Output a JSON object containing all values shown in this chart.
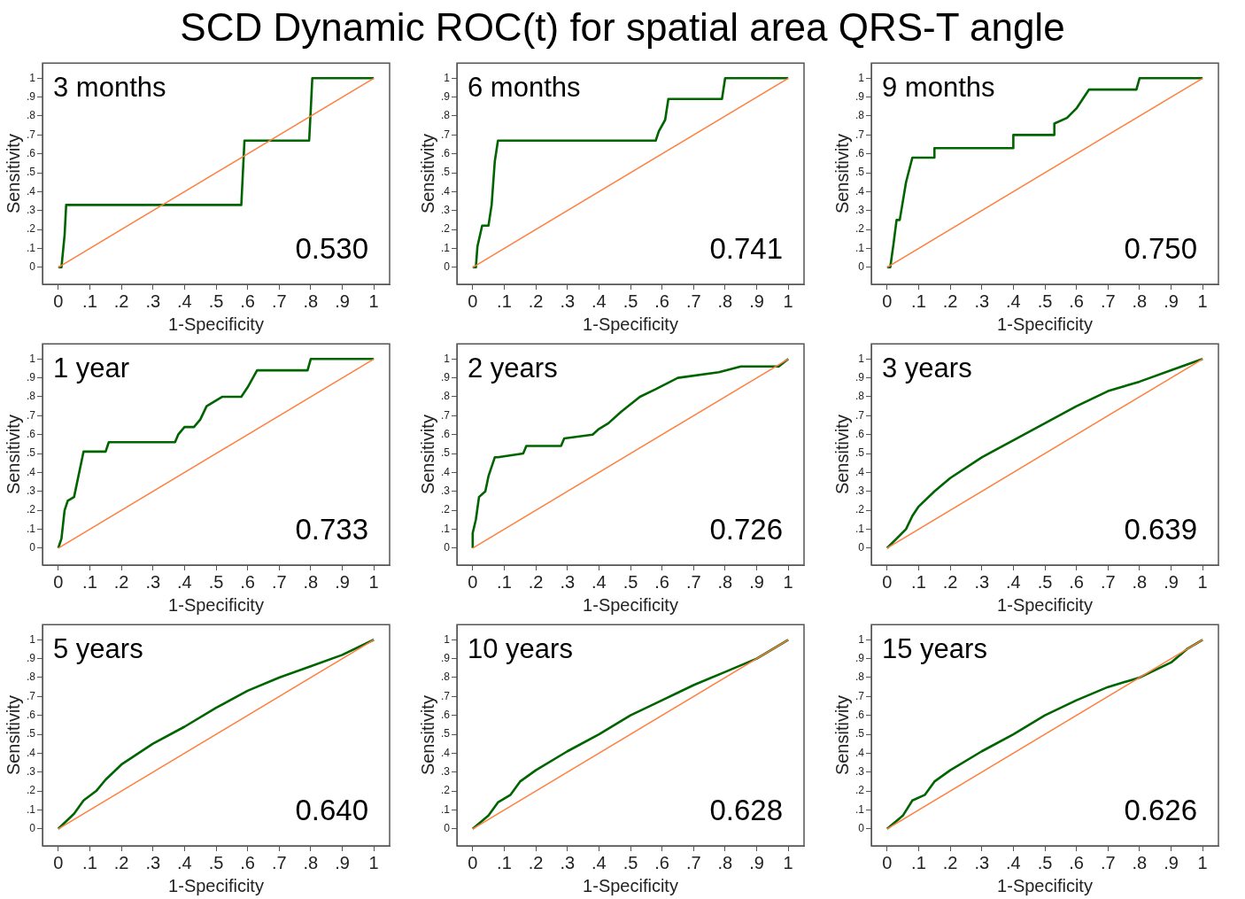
{
  "chart_data": [
    {
      "type": "line",
      "title": "SCD Dynamic ROC(t) for spatial area QRS-T angle",
      "xlabel": "1-Specificity",
      "ylabel": "Sensitivity",
      "annotations": [
        "3 months",
        "0.530"
      ],
      "xlim": [
        -0.05,
        1.05
      ],
      "ylim": [
        -0.09,
        1.08
      ],
      "xticks": [
        {
          "value": 0,
          "label": "0"
        },
        {
          "value": 0.1,
          "label": ".1"
        },
        {
          "value": 0.2,
          "label": ".2"
        },
        {
          "value": 0.3,
          "label": ".3"
        },
        {
          "value": 0.4,
          "label": ".4"
        },
        {
          "value": 0.5,
          "label": ".5"
        },
        {
          "value": 0.6,
          "label": ".6"
        },
        {
          "value": 0.7,
          "label": ".7"
        },
        {
          "value": 0.8,
          "label": ".8"
        },
        {
          "value": 0.9,
          "label": ".9"
        },
        {
          "value": 1,
          "label": "1"
        }
      ],
      "yticks": [
        {
          "value": 0,
          "label": "0"
        },
        {
          "value": 0.1,
          "label": ".1"
        },
        {
          "value": 0.2,
          "label": ".2"
        },
        {
          "value": 0.3,
          "label": ".3"
        },
        {
          "value": 0.4,
          "label": ".4"
        },
        {
          "value": 0.5,
          "label": ".5"
        },
        {
          "value": 0.6,
          "label": ".6"
        },
        {
          "value": 0.7,
          "label": ".7"
        },
        {
          "value": 0.8,
          "label": ".8"
        },
        {
          "value": 0.9,
          "label": ".9"
        },
        {
          "value": 1,
          "label": "1"
        }
      ],
      "grid": false,
      "legend": false,
      "marker": "none",
      "series": [
        {
          "color": "#006400",
          "x": [
            0,
            0.01,
            0.02,
            0.025,
            0.58,
            0.585,
            0.59,
            0.795,
            0.8,
            0.805,
            1
          ],
          "values": [
            0,
            0,
            0.17,
            0.33,
            0.33,
            0.5,
            0.67,
            0.67,
            0.83,
            1,
            1
          ]
        },
        {
          "color": "#ff7f3f",
          "x": [
            0,
            1
          ],
          "values": [
            0,
            1
          ]
        }
      ]
    },
    {
      "type": "line",
      "xlabel": "1-Specificity",
      "ylabel": "Sensitivity",
      "annotations": [
        "6 months",
        "0.741"
      ],
      "xlim": [
        -0.05,
        1.05
      ],
      "ylim": [
        -0.09,
        1.08
      ],
      "xticks": [
        {
          "value": 0,
          "label": "0"
        },
        {
          "value": 0.1,
          "label": ".1"
        },
        {
          "value": 0.2,
          "label": ".2"
        },
        {
          "value": 0.3,
          "label": ".3"
        },
        {
          "value": 0.4,
          "label": ".4"
        },
        {
          "value": 0.5,
          "label": ".5"
        },
        {
          "value": 0.6,
          "label": ".6"
        },
        {
          "value": 0.7,
          "label": ".7"
        },
        {
          "value": 0.8,
          "label": ".8"
        },
        {
          "value": 0.9,
          "label": ".9"
        },
        {
          "value": 1,
          "label": "1"
        }
      ],
      "yticks": [
        {
          "value": 0,
          "label": "0"
        },
        {
          "value": 0.1,
          "label": ".1"
        },
        {
          "value": 0.2,
          "label": ".2"
        },
        {
          "value": 0.3,
          "label": ".3"
        },
        {
          "value": 0.4,
          "label": ".4"
        },
        {
          "value": 0.5,
          "label": ".5"
        },
        {
          "value": 0.6,
          "label": ".6"
        },
        {
          "value": 0.7,
          "label": ".7"
        },
        {
          "value": 0.8,
          "label": ".8"
        },
        {
          "value": 0.9,
          "label": ".9"
        },
        {
          "value": 1,
          "label": "1"
        }
      ],
      "grid": false,
      "legend": false,
      "marker": "none",
      "series": [
        {
          "color": "#006400",
          "x": [
            0,
            0.01,
            0.015,
            0.03,
            0.05,
            0.06,
            0.07,
            0.08,
            0.58,
            0.59,
            0.61,
            0.62,
            0.79,
            0.8,
            1
          ],
          "values": [
            0,
            0,
            0.11,
            0.22,
            0.22,
            0.33,
            0.56,
            0.67,
            0.67,
            0.72,
            0.78,
            0.89,
            0.89,
            1,
            1
          ]
        },
        {
          "color": "#ff7f3f",
          "x": [
            0,
            1
          ],
          "values": [
            0,
            1
          ]
        }
      ]
    },
    {
      "type": "line",
      "xlabel": "1-Specificity",
      "ylabel": "Sensitivity",
      "annotations": [
        "9 months",
        "0.750"
      ],
      "xlim": [
        -0.05,
        1.05
      ],
      "ylim": [
        -0.09,
        1.08
      ],
      "xticks": [
        {
          "value": 0,
          "label": "0"
        },
        {
          "value": 0.1,
          "label": ".1"
        },
        {
          "value": 0.2,
          "label": ".2"
        },
        {
          "value": 0.3,
          "label": ".3"
        },
        {
          "value": 0.4,
          "label": ".4"
        },
        {
          "value": 0.5,
          "label": ".5"
        },
        {
          "value": 0.6,
          "label": ".6"
        },
        {
          "value": 0.7,
          "label": ".7"
        },
        {
          "value": 0.8,
          "label": ".8"
        },
        {
          "value": 0.9,
          "label": ".9"
        },
        {
          "value": 1,
          "label": "1"
        }
      ],
      "yticks": [
        {
          "value": 0,
          "label": "0"
        },
        {
          "value": 0.1,
          "label": ".1"
        },
        {
          "value": 0.2,
          "label": ".2"
        },
        {
          "value": 0.3,
          "label": ".3"
        },
        {
          "value": 0.4,
          "label": ".4"
        },
        {
          "value": 0.5,
          "label": ".5"
        },
        {
          "value": 0.6,
          "label": ".6"
        },
        {
          "value": 0.7,
          "label": ".7"
        },
        {
          "value": 0.8,
          "label": ".8"
        },
        {
          "value": 0.9,
          "label": ".9"
        },
        {
          "value": 1,
          "label": "1"
        }
      ],
      "grid": false,
      "legend": false,
      "marker": "none",
      "series": [
        {
          "color": "#006400",
          "x": [
            0,
            0.01,
            0.02,
            0.03,
            0.04,
            0.06,
            0.08,
            0.15,
            0.15,
            0.4,
            0.4,
            0.53,
            0.53,
            0.57,
            0.6,
            0.64,
            0.79,
            0.8,
            1
          ],
          "values": [
            0,
            0,
            0.12,
            0.25,
            0.25,
            0.45,
            0.58,
            0.58,
            0.63,
            0.63,
            0.7,
            0.7,
            0.76,
            0.79,
            0.84,
            0.94,
            0.94,
            1,
            1
          ]
        },
        {
          "color": "#ff7f3f",
          "x": [
            0,
            1
          ],
          "values": [
            0,
            1
          ]
        }
      ]
    },
    {
      "type": "line",
      "xlabel": "1-Specificity",
      "ylabel": "Sensitivity",
      "annotations": [
        "1 year",
        "0.733"
      ],
      "xlim": [
        -0.05,
        1.05
      ],
      "ylim": [
        -0.09,
        1.08
      ],
      "xticks": [
        {
          "value": 0,
          "label": "0"
        },
        {
          "value": 0.1,
          "label": ".1"
        },
        {
          "value": 0.2,
          "label": ".2"
        },
        {
          "value": 0.3,
          "label": ".3"
        },
        {
          "value": 0.4,
          "label": ".4"
        },
        {
          "value": 0.5,
          "label": ".5"
        },
        {
          "value": 0.6,
          "label": ".6"
        },
        {
          "value": 0.7,
          "label": ".7"
        },
        {
          "value": 0.8,
          "label": ".8"
        },
        {
          "value": 0.9,
          "label": ".9"
        },
        {
          "value": 1,
          "label": "1"
        }
      ],
      "yticks": [
        {
          "value": 0,
          "label": "0"
        },
        {
          "value": 0.1,
          "label": ".1"
        },
        {
          "value": 0.2,
          "label": ".2"
        },
        {
          "value": 0.3,
          "label": ".3"
        },
        {
          "value": 0.4,
          "label": ".4"
        },
        {
          "value": 0.5,
          "label": ".5"
        },
        {
          "value": 0.6,
          "label": ".6"
        },
        {
          "value": 0.7,
          "label": ".7"
        },
        {
          "value": 0.8,
          "label": ".8"
        },
        {
          "value": 0.9,
          "label": ".9"
        },
        {
          "value": 1,
          "label": "1"
        }
      ],
      "grid": false,
      "legend": false,
      "marker": "none",
      "series": [
        {
          "color": "#006400",
          "x": [
            0,
            0.01,
            0.02,
            0.03,
            0.05,
            0.08,
            0.15,
            0.16,
            0.37,
            0.38,
            0.4,
            0.43,
            0.45,
            0.47,
            0.52,
            0.58,
            0.6,
            0.63,
            0.79,
            0.8,
            1
          ],
          "values": [
            0,
            0.05,
            0.2,
            0.25,
            0.27,
            0.51,
            0.51,
            0.56,
            0.56,
            0.6,
            0.64,
            0.64,
            0.68,
            0.75,
            0.8,
            0.8,
            0.85,
            0.94,
            0.94,
            1,
            1
          ]
        },
        {
          "color": "#ff7f3f",
          "x": [
            0,
            1
          ],
          "values": [
            0,
            1
          ]
        }
      ]
    },
    {
      "type": "line",
      "xlabel": "1-Specificity",
      "ylabel": "Sensitivity",
      "annotations": [
        "2 years",
        "0.726"
      ],
      "xlim": [
        -0.05,
        1.05
      ],
      "ylim": [
        -0.09,
        1.08
      ],
      "xticks": [
        {
          "value": 0,
          "label": "0"
        },
        {
          "value": 0.1,
          "label": ".1"
        },
        {
          "value": 0.2,
          "label": ".2"
        },
        {
          "value": 0.3,
          "label": ".3"
        },
        {
          "value": 0.4,
          "label": ".4"
        },
        {
          "value": 0.5,
          "label": ".5"
        },
        {
          "value": 0.6,
          "label": ".6"
        },
        {
          "value": 0.7,
          "label": ".7"
        },
        {
          "value": 0.8,
          "label": ".8"
        },
        {
          "value": 0.9,
          "label": ".9"
        },
        {
          "value": 1,
          "label": "1"
        }
      ],
      "yticks": [
        {
          "value": 0,
          "label": "0"
        },
        {
          "value": 0.1,
          "label": ".1"
        },
        {
          "value": 0.2,
          "label": ".2"
        },
        {
          "value": 0.3,
          "label": ".3"
        },
        {
          "value": 0.4,
          "label": ".4"
        },
        {
          "value": 0.5,
          "label": ".5"
        },
        {
          "value": 0.6,
          "label": ".6"
        },
        {
          "value": 0.7,
          "label": ".7"
        },
        {
          "value": 0.8,
          "label": ".8"
        },
        {
          "value": 0.9,
          "label": ".9"
        },
        {
          "value": 1,
          "label": "1"
        }
      ],
      "grid": false,
      "legend": false,
      "marker": "none",
      "series": [
        {
          "color": "#006400",
          "x": [
            0,
            0,
            0.01,
            0.02,
            0.04,
            0.05,
            0.07,
            0.08,
            0.16,
            0.17,
            0.28,
            0.29,
            0.38,
            0.4,
            0.43,
            0.47,
            0.5,
            0.53,
            0.58,
            0.65,
            0.78,
            0.85,
            0.97,
            1
          ],
          "values": [
            0,
            0.08,
            0.15,
            0.27,
            0.3,
            0.38,
            0.48,
            0.48,
            0.5,
            0.54,
            0.54,
            0.58,
            0.6,
            0.63,
            0.66,
            0.72,
            0.76,
            0.8,
            0.84,
            0.9,
            0.93,
            0.96,
            0.96,
            1
          ]
        },
        {
          "color": "#ff7f3f",
          "x": [
            0,
            1
          ],
          "values": [
            0,
            1
          ]
        }
      ]
    },
    {
      "type": "line",
      "xlabel": "1-Specificity",
      "ylabel": "Sensitivity",
      "annotations": [
        "3 years",
        "0.639"
      ],
      "xlim": [
        -0.05,
        1.05
      ],
      "ylim": [
        -0.09,
        1.08
      ],
      "xticks": [
        {
          "value": 0,
          "label": "0"
        },
        {
          "value": 0.1,
          "label": ".1"
        },
        {
          "value": 0.2,
          "label": ".2"
        },
        {
          "value": 0.3,
          "label": ".3"
        },
        {
          "value": 0.4,
          "label": ".4"
        },
        {
          "value": 0.5,
          "label": ".5"
        },
        {
          "value": 0.6,
          "label": ".6"
        },
        {
          "value": 0.7,
          "label": ".7"
        },
        {
          "value": 0.8,
          "label": ".8"
        },
        {
          "value": 0.9,
          "label": ".9"
        },
        {
          "value": 1,
          "label": "1"
        }
      ],
      "yticks": [
        {
          "value": 0,
          "label": "0"
        },
        {
          "value": 0.1,
          "label": ".1"
        },
        {
          "value": 0.2,
          "label": ".2"
        },
        {
          "value": 0.3,
          "label": ".3"
        },
        {
          "value": 0.4,
          "label": ".4"
        },
        {
          "value": 0.5,
          "label": ".5"
        },
        {
          "value": 0.6,
          "label": ".6"
        },
        {
          "value": 0.7,
          "label": ".7"
        },
        {
          "value": 0.8,
          "label": ".8"
        },
        {
          "value": 0.9,
          "label": ".9"
        },
        {
          "value": 1,
          "label": "1"
        }
      ],
      "grid": false,
      "legend": false,
      "marker": "none",
      "series": [
        {
          "color": "#006400",
          "x": [
            0,
            0.03,
            0.06,
            0.08,
            0.1,
            0.15,
            0.2,
            0.3,
            0.4,
            0.5,
            0.6,
            0.7,
            0.8,
            0.9,
            1
          ],
          "values": [
            0,
            0.05,
            0.1,
            0.17,
            0.22,
            0.3,
            0.37,
            0.48,
            0.57,
            0.66,
            0.75,
            0.83,
            0.88,
            0.94,
            1
          ]
        },
        {
          "color": "#ff7f3f",
          "x": [
            0,
            1
          ],
          "values": [
            0,
            1
          ]
        }
      ]
    },
    {
      "type": "line",
      "xlabel": "1-Specificity",
      "ylabel": "Sensitivity",
      "annotations": [
        "5 years",
        "0.640"
      ],
      "xlim": [
        -0.05,
        1.05
      ],
      "ylim": [
        -0.09,
        1.08
      ],
      "xticks": [
        {
          "value": 0,
          "label": "0"
        },
        {
          "value": 0.1,
          "label": ".1"
        },
        {
          "value": 0.2,
          "label": ".2"
        },
        {
          "value": 0.3,
          "label": ".3"
        },
        {
          "value": 0.4,
          "label": ".4"
        },
        {
          "value": 0.5,
          "label": ".5"
        },
        {
          "value": 0.6,
          "label": ".6"
        },
        {
          "value": 0.7,
          "label": ".7"
        },
        {
          "value": 0.8,
          "label": ".8"
        },
        {
          "value": 0.9,
          "label": ".9"
        },
        {
          "value": 1,
          "label": "1"
        }
      ],
      "yticks": [
        {
          "value": 0,
          "label": "0"
        },
        {
          "value": 0.1,
          "label": ".1"
        },
        {
          "value": 0.2,
          "label": ".2"
        },
        {
          "value": 0.3,
          "label": ".3"
        },
        {
          "value": 0.4,
          "label": ".4"
        },
        {
          "value": 0.5,
          "label": ".5"
        },
        {
          "value": 0.6,
          "label": ".6"
        },
        {
          "value": 0.7,
          "label": ".7"
        },
        {
          "value": 0.8,
          "label": ".8"
        },
        {
          "value": 0.9,
          "label": ".9"
        },
        {
          "value": 1,
          "label": "1"
        }
      ],
      "grid": false,
      "legend": false,
      "marker": "none",
      "series": [
        {
          "color": "#006400",
          "x": [
            0,
            0.05,
            0.08,
            0.12,
            0.15,
            0.2,
            0.3,
            0.4,
            0.5,
            0.6,
            0.7,
            0.8,
            0.9,
            1
          ],
          "values": [
            0,
            0.08,
            0.15,
            0.2,
            0.26,
            0.34,
            0.45,
            0.54,
            0.64,
            0.73,
            0.8,
            0.86,
            0.92,
            1
          ]
        },
        {
          "color": "#ff7f3f",
          "x": [
            0,
            1
          ],
          "values": [
            0,
            1
          ]
        }
      ]
    },
    {
      "type": "line",
      "xlabel": "1-Specificity",
      "ylabel": "Sensitivity",
      "annotations": [
        "10 years",
        "0.628"
      ],
      "xlim": [
        -0.05,
        1.05
      ],
      "ylim": [
        -0.09,
        1.08
      ],
      "xticks": [
        {
          "value": 0,
          "label": "0"
        },
        {
          "value": 0.1,
          "label": ".1"
        },
        {
          "value": 0.2,
          "label": ".2"
        },
        {
          "value": 0.3,
          "label": ".3"
        },
        {
          "value": 0.4,
          "label": ".4"
        },
        {
          "value": 0.5,
          "label": ".5"
        },
        {
          "value": 0.6,
          "label": ".6"
        },
        {
          "value": 0.7,
          "label": ".7"
        },
        {
          "value": 0.8,
          "label": ".8"
        },
        {
          "value": 0.9,
          "label": ".9"
        },
        {
          "value": 1,
          "label": "1"
        }
      ],
      "yticks": [
        {
          "value": 0,
          "label": "0"
        },
        {
          "value": 0.1,
          "label": ".1"
        },
        {
          "value": 0.2,
          "label": ".2"
        },
        {
          "value": 0.3,
          "label": ".3"
        },
        {
          "value": 0.4,
          "label": ".4"
        },
        {
          "value": 0.5,
          "label": ".5"
        },
        {
          "value": 0.6,
          "label": ".6"
        },
        {
          "value": 0.7,
          "label": ".7"
        },
        {
          "value": 0.8,
          "label": ".8"
        },
        {
          "value": 0.9,
          "label": ".9"
        },
        {
          "value": 1,
          "label": "1"
        }
      ],
      "grid": false,
      "legend": false,
      "marker": "none",
      "series": [
        {
          "color": "#006400",
          "x": [
            0,
            0.05,
            0.08,
            0.12,
            0.15,
            0.2,
            0.3,
            0.4,
            0.5,
            0.6,
            0.7,
            0.8,
            0.9,
            1
          ],
          "values": [
            0,
            0.07,
            0.14,
            0.18,
            0.25,
            0.31,
            0.41,
            0.5,
            0.6,
            0.68,
            0.76,
            0.83,
            0.9,
            1
          ]
        },
        {
          "color": "#ff7f3f",
          "x": [
            0,
            1
          ],
          "values": [
            0,
            1
          ]
        }
      ]
    },
    {
      "type": "line",
      "xlabel": "1-Specificity",
      "ylabel": "Sensitivity",
      "annotations": [
        "15 years",
        "0.626"
      ],
      "xlim": [
        -0.05,
        1.05
      ],
      "ylim": [
        -0.09,
        1.08
      ],
      "xticks": [
        {
          "value": 0,
          "label": "0"
        },
        {
          "value": 0.1,
          "label": ".1"
        },
        {
          "value": 0.2,
          "label": ".2"
        },
        {
          "value": 0.3,
          "label": ".3"
        },
        {
          "value": 0.4,
          "label": ".4"
        },
        {
          "value": 0.5,
          "label": ".5"
        },
        {
          "value": 0.6,
          "label": ".6"
        },
        {
          "value": 0.7,
          "label": ".7"
        },
        {
          "value": 0.8,
          "label": ".8"
        },
        {
          "value": 0.9,
          "label": ".9"
        },
        {
          "value": 1,
          "label": "1"
        }
      ],
      "yticks": [
        {
          "value": 0,
          "label": "0"
        },
        {
          "value": 0.1,
          "label": ".1"
        },
        {
          "value": 0.2,
          "label": ".2"
        },
        {
          "value": 0.3,
          "label": ".3"
        },
        {
          "value": 0.4,
          "label": ".4"
        },
        {
          "value": 0.5,
          "label": ".5"
        },
        {
          "value": 0.6,
          "label": ".6"
        },
        {
          "value": 0.7,
          "label": ".7"
        },
        {
          "value": 0.8,
          "label": ".8"
        },
        {
          "value": 0.9,
          "label": ".9"
        },
        {
          "value": 1,
          "label": "1"
        }
      ],
      "grid": false,
      "legend": false,
      "marker": "none",
      "series": [
        {
          "color": "#006400",
          "x": [
            0,
            0.05,
            0.08,
            0.12,
            0.15,
            0.2,
            0.3,
            0.4,
            0.5,
            0.6,
            0.7,
            0.8,
            0.9,
            0.95,
            1
          ],
          "values": [
            0,
            0.07,
            0.15,
            0.18,
            0.25,
            0.31,
            0.41,
            0.5,
            0.6,
            0.68,
            0.75,
            0.8,
            0.88,
            0.95,
            1
          ]
        },
        {
          "color": "#ff7f3f",
          "x": [
            0,
            1
          ],
          "values": [
            0,
            1
          ]
        }
      ]
    }
  ]
}
